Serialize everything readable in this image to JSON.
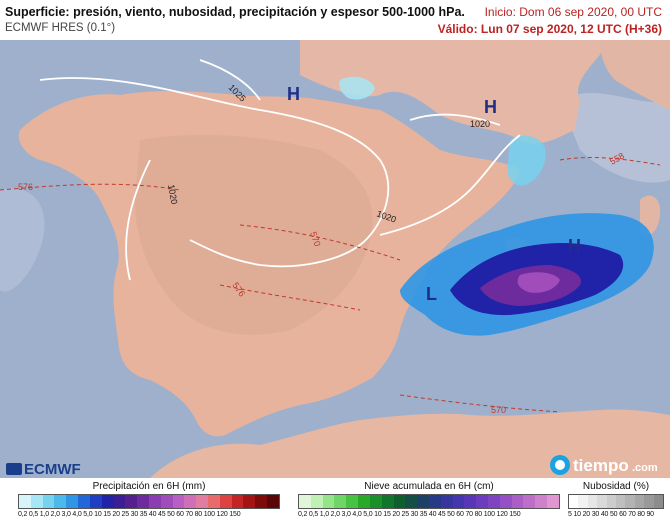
{
  "header": {
    "title": "Superficie: presión, viento, nubosidad, precipitación y espesor 500-1000 hPa.",
    "model": "ECMWF HRES (0.1°)",
    "init": "Inicio: Dom 06 sep 2020, 00 UTC",
    "valid": "Válido: Lun 07 sep 2020, 12 UTC (H+36)"
  },
  "map": {
    "pressure_centers": [
      "H",
      "H",
      "H",
      "L"
    ],
    "isobar_labels": [
      "1025",
      "1020",
      "1020",
      "1020"
    ],
    "thickness_labels": [
      "576",
      "570",
      "576",
      "570",
      "558"
    ],
    "colors": {
      "sea": "#9fb0cc",
      "land": "#e8b39c",
      "isobar": "#ffffff",
      "thickness": "#c0392b",
      "pressure_letter": "#1f2f86"
    }
  },
  "logos": {
    "ecmwf": "ECMWF",
    "tiempo": "tiempo",
    "tiempo_suffix": ".com"
  },
  "legends": {
    "precipitation": {
      "title": "Precipitación en 6H (mm)",
      "ticks": "0,2 0,5 1,0 2,0 3,0 4,0 5,0 10 15 20 25 30 35 40 45 50 60 70 80 100 120 150",
      "colors": [
        "#d8f4fb",
        "#a7e6f5",
        "#77d2ef",
        "#4cb9ea",
        "#2f96e6",
        "#2167d8",
        "#1f3ec4",
        "#2022a8",
        "#3b1d96",
        "#55208e",
        "#6d2b9e",
        "#8a3cb0",
        "#a04dbb",
        "#b95fc4",
        "#cf6fb7",
        "#e07da0",
        "#e86a6a",
        "#dd4343",
        "#c52424",
        "#a51414",
        "#7f0a0a",
        "#5a0606"
      ]
    },
    "snow": {
      "title": "Nieve acumulada en 6H (cm)",
      "ticks": "0,2 0,5 1,0 2,0 3,0 4,0 5,0 10 15 20 25 30 35 40 45 50 60 70 80 100 120 150",
      "colors": [
        "#dff7d8",
        "#bff0b4",
        "#95e48a",
        "#6fd566",
        "#47c243",
        "#2aa82a",
        "#1a8f2a",
        "#12752c",
        "#0e5f2e",
        "#144f46",
        "#1d4066",
        "#283a86",
        "#36369e",
        "#4535ae",
        "#5737b8",
        "#6b3cbe",
        "#7f44c2",
        "#9450c4",
        "#a95fc6",
        "#bd6fc8",
        "#cf82cb",
        "#e096d0"
      ]
    },
    "clouds": {
      "title": "Nubosidad (%)",
      "ticks": "5 10 20 30 40 50 60 70 80 90",
      "colors": [
        "#ffffff",
        "#f2f2f2",
        "#e6e6e6",
        "#d9d9d9",
        "#cccccc",
        "#bfbfbf",
        "#b3b3b3",
        "#a6a6a6",
        "#999999",
        "#8c8c8c"
      ]
    }
  }
}
